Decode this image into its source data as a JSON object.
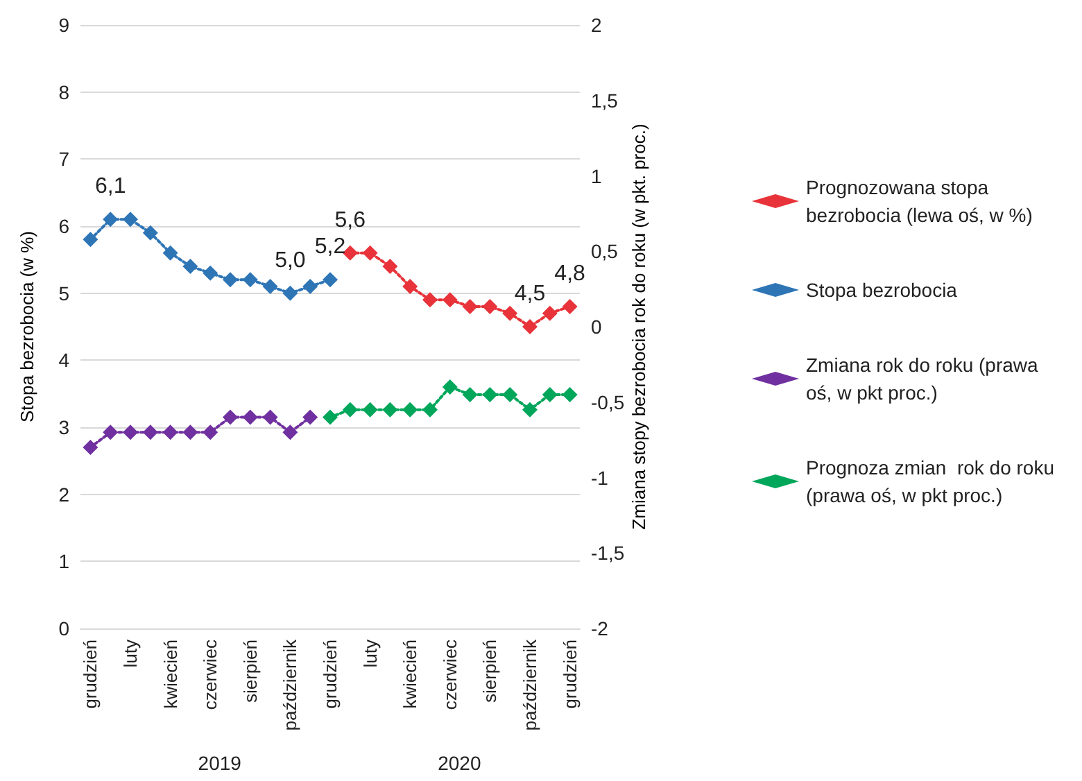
{
  "chart_data": {
    "type": "line",
    "ylabel": "Stopa bezrobocia (w %)",
    "y2label": "Zmiana stopy bezrobocia rok do roku (w pkt. proc.)",
    "categories": [
      "grudzień",
      null,
      "luty",
      null,
      "kwiecień",
      null,
      "czerwiec",
      null,
      "sierpień",
      null,
      "październik",
      null,
      "grudzień",
      null,
      "luty",
      null,
      "kwiecień",
      null,
      "czerwiec",
      null,
      "sierpień",
      null,
      "październik",
      null,
      "grudzień"
    ],
    "series": [
      {
        "name": "Prognozowana stopa bezrobocia (lewa oś, w %)",
        "color": "#e8333a",
        "values": [
          null,
          null,
          null,
          null,
          null,
          null,
          null,
          null,
          null,
          null,
          null,
          null,
          null,
          5.6,
          5.6,
          5.4,
          5.1,
          4.9,
          4.9,
          4.8,
          4.8,
          4.7,
          4.5,
          4.7,
          4.8
        ],
        "value_labels": [
          null,
          null,
          null,
          null,
          null,
          null,
          null,
          null,
          null,
          null,
          null,
          null,
          null,
          "5,6",
          null,
          null,
          null,
          null,
          null,
          null,
          null,
          null,
          "4,5",
          null,
          "4,8"
        ]
      },
      {
        "name": "Stopa bezrobocia",
        "color": "#2e75b6",
        "values": [
          5.8,
          6.1,
          6.1,
          5.9,
          5.6,
          5.4,
          5.3,
          5.2,
          5.2,
          5.1,
          5.0,
          5.1,
          5.2,
          null,
          null,
          null,
          null,
          null,
          null,
          null,
          null,
          null,
          null,
          null,
          null
        ],
        "value_labels": [
          null,
          "6,1",
          null,
          null,
          null,
          null,
          null,
          null,
          null,
          null,
          "5,0",
          null,
          "5,2",
          null,
          null,
          null,
          null,
          null,
          null,
          null,
          null,
          null,
          null,
          null,
          null
        ]
      },
      {
        "name": "Zmiana rok do roku (prawa oś, w pkt proc.)",
        "color": "#7030a0",
        "axis": "y2",
        "values": [
          -0.8,
          -0.7,
          -0.7,
          -0.7,
          -0.7,
          -0.7,
          -0.7,
          -0.6,
          -0.6,
          -0.6,
          -0.7,
          -0.6,
          null,
          null,
          null,
          null,
          null,
          null,
          null,
          null,
          null,
          null,
          null,
          null,
          null
        ]
      },
      {
        "name": "Prognoza zmian  rok do roku (prawa oś, w pkt proc.)",
        "color": "#00a65a",
        "axis": "y2",
        "values": [
          null,
          null,
          null,
          null,
          null,
          null,
          null,
          null,
          null,
          null,
          null,
          null,
          -0.6,
          -0.55,
          -0.55,
          -0.55,
          -0.55,
          -0.55,
          -0.4,
          -0.45,
          -0.45,
          -0.45,
          -0.55,
          -0.45,
          -0.45
        ]
      }
    ],
    "ylim": [
      0,
      9
    ],
    "yticks": [
      0,
      1,
      2,
      3,
      4,
      5,
      6,
      7,
      8,
      9
    ],
    "y2lim": [
      -2,
      2
    ],
    "y2ticks": [
      -2,
      {
        "value": -1.5,
        "label": "-1,5"
      },
      -1,
      {
        "value": -0.5,
        "label": "-0,5"
      },
      0,
      {
        "value": 0.5,
        "label": "0,5"
      },
      1,
      {
        "value": 1.5,
        "label": "1,5"
      },
      2
    ],
    "annotations": [
      "2019",
      "2020"
    ],
    "grid": "y",
    "legend": "right",
    "marker": "diamond",
    "line_style": "dotted"
  }
}
